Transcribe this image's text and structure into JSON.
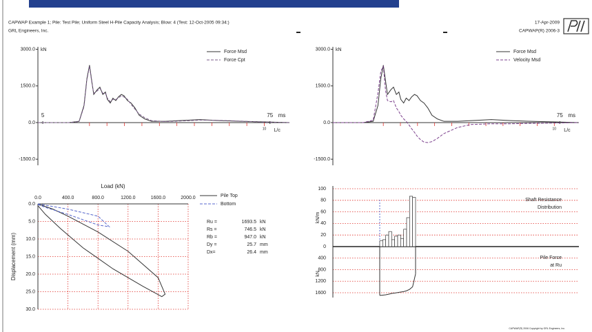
{
  "header": {
    "title": "CAPWAP Example 1; Pile: Test Pile; Uniform Steel H-Pile Capacity Analysis; Blow: 4 (Test: 12-Oct-2005 09:34:)",
    "company": "GRL Engineers, Inc.",
    "date": "17-Apr-2009",
    "version": "CAPWAP(R) 2006-3"
  },
  "footer": "CAPWAP(R) 2006 Copyright by GRL Engineers, Inc.",
  "chart_data": [
    {
      "type": "line",
      "x": [
        3.5,
        13.1,
        16.2,
        17.7,
        18.6,
        19.4,
        20.1,
        20.7,
        21.8,
        22.6,
        23.5,
        24.3,
        24.9,
        25.8,
        26.6,
        27.5,
        28.3,
        29.2,
        30.0,
        31.1,
        32.2,
        33.4,
        34.7,
        36.4,
        38.5,
        42.8,
        47.0,
        53.4,
        59.7,
        66.1,
        72.5,
        81.0
      ],
      "xlim": [
        3.5,
        81
      ],
      "xticks": [
        5,
        75
      ],
      "x_unit": "ms",
      "lc_tick": 10,
      "lc_label": "L/c",
      "y_label": "kN",
      "ylim": [
        -1750,
        3100
      ],
      "yticks": [
        {
          "value": 3000,
          "label": "3000.0"
        },
        {
          "value": 1500,
          "label": "1500.0"
        },
        {
          "value": 0,
          "label": "0.0"
        },
        {
          "value": -1500,
          "label": "-1500.0"
        }
      ],
      "series": [
        {
          "name": "Force Msd",
          "color": "#333333",
          "dash": false,
          "values": [
            0,
            0,
            50,
            700,
            1800,
            2350,
            1700,
            1150,
            1350,
            1450,
            1150,
            1250,
            950,
            800,
            1000,
            900,
            1050,
            1150,
            1100,
            900,
            800,
            600,
            300,
            150,
            50,
            50,
            80,
            120,
            80,
            50,
            30,
            0
          ]
        },
        {
          "name": "Force Cpt",
          "color": "#7a5c8a",
          "dash": true,
          "values": [
            0,
            0,
            40,
            650,
            1750,
            2300,
            1650,
            1200,
            1300,
            1400,
            1200,
            1200,
            1000,
            850,
            950,
            950,
            1000,
            1100,
            1050,
            950,
            750,
            550,
            350,
            200,
            80,
            40,
            60,
            100,
            90,
            60,
            20,
            0
          ]
        }
      ]
    },
    {
      "type": "line",
      "x": [
        3.5,
        13.1,
        16.2,
        17.7,
        18.6,
        19.4,
        20.1,
        20.7,
        21.8,
        22.6,
        23.5,
        24.3,
        24.9,
        25.8,
        26.6,
        27.5,
        28.3,
        29.2,
        30.0,
        31.1,
        32.2,
        33.4,
        34.7,
        36.4,
        38.5,
        42.8,
        47.0,
        53.4,
        59.7,
        66.1,
        72.5,
        81.0
      ],
      "xlim": [
        3.5,
        81
      ],
      "xticks": [
        75
      ],
      "x_unit": "ms",
      "lc_tick": 10,
      "lc_label": "L/c",
      "y_label": "kN",
      "ylim": [
        -1750,
        3100
      ],
      "yticks": [
        {
          "value": 3000,
          "label": "3000.0"
        },
        {
          "value": 1500,
          "label": "1500.0"
        },
        {
          "value": 0,
          "label": "0.0"
        },
        {
          "value": -1500,
          "label": "-1500.0"
        }
      ],
      "series": [
        {
          "name": "Force Msd",
          "color": "#333333",
          "dash": false,
          "values": [
            0,
            0,
            50,
            700,
            1800,
            2350,
            1700,
            1150,
            1350,
            1450,
            1150,
            1250,
            950,
            800,
            1000,
            900,
            1050,
            1150,
            1100,
            900,
            800,
            600,
            300,
            150,
            50,
            50,
            80,
            120,
            80,
            50,
            30,
            0
          ]
        },
        {
          "name": "Velocity Msd",
          "color": "#7b3f8c",
          "dash": true,
          "values": [
            0,
            0,
            100,
            1200,
            2100,
            2300,
            1300,
            900,
            850,
            900,
            600,
            450,
            300,
            150,
            50,
            -100,
            -250,
            -400,
            -550,
            -700,
            -800,
            -820,
            -780,
            -650,
            -450,
            -200,
            -80,
            -50,
            -50,
            -30,
            -20,
            0
          ]
        }
      ]
    },
    {
      "type": "xy",
      "x_label": "Load (kN)",
      "y_label": "Displacement (mm)",
      "xlim": [
        0,
        2000
      ],
      "xticks": [
        {
          "value": 0,
          "label": "0.0"
        },
        {
          "value": 400,
          "label": "400.0"
        },
        {
          "value": 800,
          "label": "800.0"
        },
        {
          "value": 1200,
          "label": "1200.0"
        },
        {
          "value": 1600,
          "label": "1600.0"
        },
        {
          "value": 2000,
          "label": "2000.0"
        }
      ],
      "ylim": [
        0,
        30
      ],
      "y_inverted": true,
      "yticks": [
        {
          "value": 0,
          "label": "0.0"
        },
        {
          "value": 5,
          "label": "5.0"
        },
        {
          "value": 10,
          "label": "10.0"
        },
        {
          "value": 15,
          "label": "15.0"
        },
        {
          "value": 20,
          "label": "20.0"
        },
        {
          "value": 25,
          "label": "25.0"
        },
        {
          "value": 30,
          "label": "30.0"
        }
      ],
      "grid": true,
      "series": [
        {
          "name": "Pile Top",
          "color": "#333333",
          "dash": false,
          "x": [
            0,
            200,
            400,
            800,
            1200,
            1600,
            1693.5,
            1650,
            1400,
            1000,
            600,
            300,
            100,
            0
          ],
          "values": [
            0,
            1.5,
            3.5,
            8,
            13.5,
            21,
            25.7,
            26.4,
            23.5,
            18.5,
            12.5,
            7,
            3,
            0.5
          ]
        },
        {
          "name": "Bottom",
          "color": "#5566cc",
          "dash": true,
          "x": [
            0,
            400,
            800,
            950,
            800,
            400,
            100,
            0
          ],
          "values": [
            0,
            1.5,
            3.5,
            6.5,
            6,
            3,
            1,
            0.2
          ]
        }
      ],
      "results": [
        [
          "Ru =",
          "1693.5",
          "kN"
        ],
        [
          "Rs =",
          "746.5",
          "kN"
        ],
        [
          "Rb =",
          "947.0",
          "kN"
        ],
        [
          "Dy =",
          "25.7",
          "mm"
        ],
        [
          "Dx=",
          "26.4",
          "mm"
        ]
      ]
    },
    {
      "type": "bar",
      "ylim": [
        0,
        100
      ],
      "yticks": [
        0,
        20,
        40,
        60,
        80,
        100
      ],
      "y_label": "kN/m",
      "y2lim": [
        0,
        1600
      ],
      "y2ticks": [
        400,
        800,
        1200,
        1600
      ],
      "y2_inverted": true,
      "y2_label": "kN",
      "grid": true,
      "series": [
        {
          "label": [
            "Shaft Resistance",
            "Distribution"
          ],
          "color": "#333333",
          "values": [
            10,
            12,
            20,
            26,
            12,
            18,
            20,
            14,
            30,
            50,
            87,
            85
          ]
        },
        {
          "label": [
            "Pile Force",
            "at Ru"
          ],
          "color": "#333333",
          "axis": "y2",
          "values": [
            1693.5,
            1683,
            1671,
            1651,
            1625,
            1613,
            1595,
            1575,
            1561,
            1531,
            1481,
            1394,
            947
          ]
        }
      ]
    }
  ]
}
